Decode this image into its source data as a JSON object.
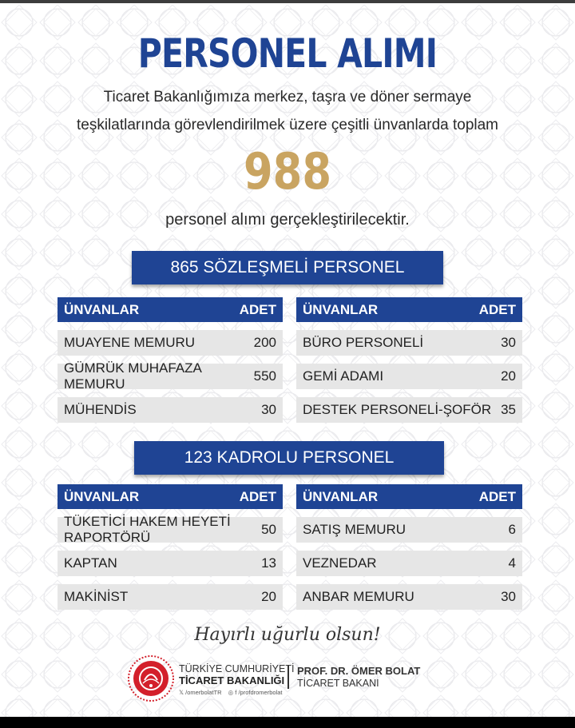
{
  "title": "PERSONEL ALIMI",
  "intro": {
    "line1": "Ticaret Bakanlığımıza merkez, taşra ve döner sermaye",
    "line2": "teşkilatlarında görevlendirilmek üzere çeşitli ünvanlarda toplam",
    "total": "988",
    "line3": "personel alımı gerçekleştirilecektir."
  },
  "sections": [
    {
      "heading": "865 SÖZLEŞMELİ PERSONEL",
      "tables": [
        {
          "col_title": "ÜNVANLAR",
          "col_count": "ADET",
          "rows": [
            {
              "title": "MUAYENE MEMURU",
              "count": "200"
            },
            {
              "title": "GÜMRÜK MUHAFAZA MEMURU",
              "count": "550"
            },
            {
              "title": "MÜHENDİS",
              "count": "30"
            }
          ]
        },
        {
          "col_title": "ÜNVANLAR",
          "col_count": "ADET",
          "rows": [
            {
              "title": "BÜRO PERSONELİ",
              "count": "30"
            },
            {
              "title": "GEMİ ADAMI",
              "count": "20"
            },
            {
              "title": "DESTEK PERSONELİ-ŞOFÖR",
              "count": "35"
            }
          ]
        }
      ]
    },
    {
      "heading": "123 KADROLU PERSONEL",
      "tables": [
        {
          "col_title": "ÜNVANLAR",
          "col_count": "ADET",
          "rows": [
            {
              "title": "TÜKETİCİ HAKEM HEYETİ RAPORTÖRÜ",
              "count": "50"
            },
            {
              "title": "KAPTAN",
              "count": "13"
            },
            {
              "title": "MAKİNİST",
              "count": "20"
            }
          ]
        },
        {
          "col_title": "ÜNVANLAR",
          "col_count": "ADET",
          "rows": [
            {
              "title": "SATIŞ MEMURU",
              "count": "6"
            },
            {
              "title": "VEZNEDAR",
              "count": "4"
            },
            {
              "title": "ANBAR MEMURU",
              "count": "30"
            }
          ]
        }
      ]
    }
  ],
  "closing": "Hayırlı uğurlu olsun!",
  "footer": {
    "ministry_line1": "TÜRKİYE CUMHURİYETİ",
    "ministry_line2": "TİCARET BAKANLIĞI",
    "socials": [
      "𝕏 /omerbolatTR",
      "◎ f /profdromerbolat"
    ],
    "minister_name": "PROF. DR. ÖMER BOLAT",
    "minister_title": "TİCARET BAKANI"
  },
  "colors": {
    "brand_blue": "#1f4494",
    "gold": "#c9a461",
    "row_gray": "#e6e6e6",
    "emblem_red": "#d3202b"
  },
  "icons": [
    "ministry-emblem-icon",
    "x-social-icon",
    "instagram-icon",
    "facebook-icon"
  ]
}
